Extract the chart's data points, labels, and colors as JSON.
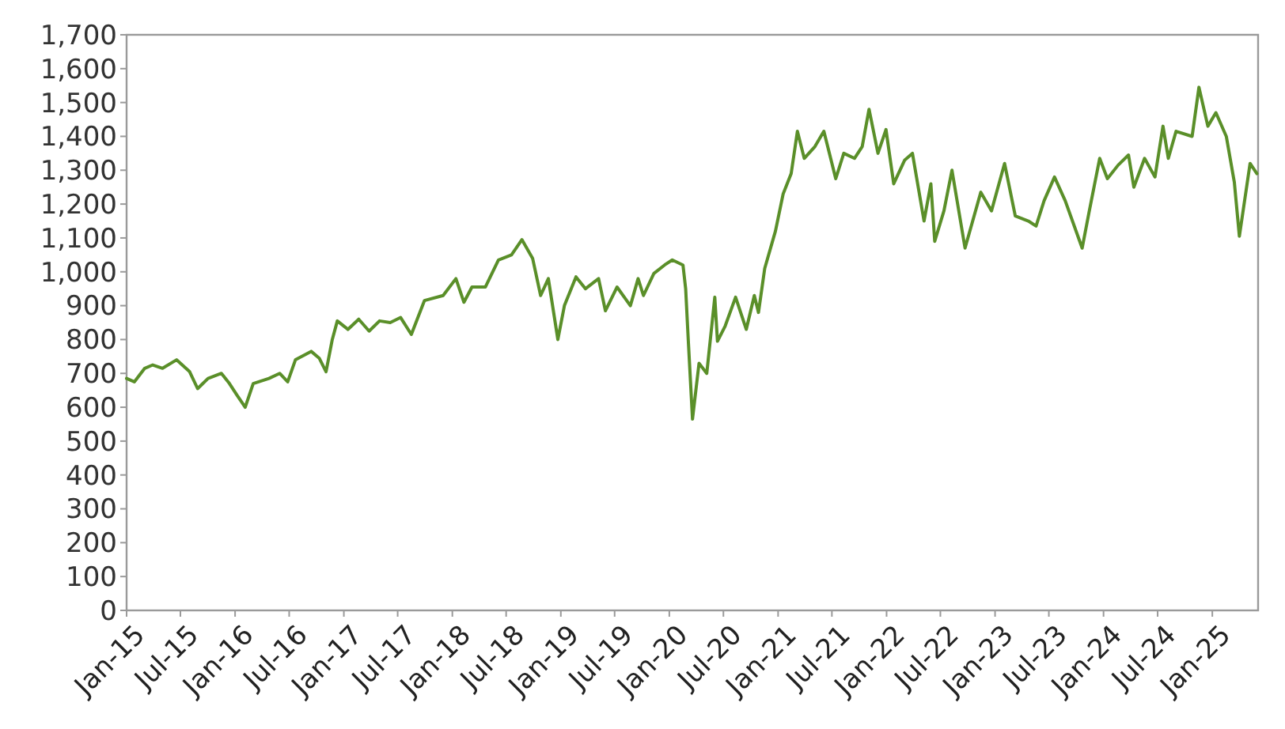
{
  "chart_data": {
    "type": "line",
    "xlim": [
      "2015-01-01",
      "2025-06-04"
    ],
    "ylim": [
      0,
      1700
    ],
    "yticks": [
      {
        "value": 0,
        "label": "0"
      },
      {
        "value": 100,
        "label": "100"
      },
      {
        "value": 200,
        "label": "200"
      },
      {
        "value": 300,
        "label": "300"
      },
      {
        "value": 400,
        "label": "400"
      },
      {
        "value": 500,
        "label": "500"
      },
      {
        "value": 600,
        "label": "600"
      },
      {
        "value": 700,
        "label": "700"
      },
      {
        "value": 800,
        "label": "800"
      },
      {
        "value": 900,
        "label": "900"
      },
      {
        "value": 1000,
        "label": "1,000"
      },
      {
        "value": 1100,
        "label": "1,100"
      },
      {
        "value": 1200,
        "label": "1,200"
      },
      {
        "value": 1300,
        "label": "1,300"
      },
      {
        "value": 1400,
        "label": "1,400"
      },
      {
        "value": 1500,
        "label": "1,500"
      },
      {
        "value": 1600,
        "label": "1,600"
      },
      {
        "value": 1700,
        "label": "1,700"
      }
    ],
    "xticks": [
      {
        "value": "2015-01-01",
        "label": "Jan-15"
      },
      {
        "value": "2015-07-01",
        "label": "Jul-15"
      },
      {
        "value": "2016-01-01",
        "label": "Jan-16"
      },
      {
        "value": "2016-07-01",
        "label": "Jul-16"
      },
      {
        "value": "2017-01-01",
        "label": "Jan-17"
      },
      {
        "value": "2017-07-01",
        "label": "Jul-17"
      },
      {
        "value": "2018-01-01",
        "label": "Jan-18"
      },
      {
        "value": "2018-07-01",
        "label": "Jul-18"
      },
      {
        "value": "2019-01-01",
        "label": "Jan-19"
      },
      {
        "value": "2019-07-01",
        "label": "Jul-19"
      },
      {
        "value": "2020-01-01",
        "label": "Jan-20"
      },
      {
        "value": "2020-07-01",
        "label": "Jul-20"
      },
      {
        "value": "2021-01-01",
        "label": "Jan-21"
      },
      {
        "value": "2021-07-01",
        "label": "Jul-21"
      },
      {
        "value": "2022-01-01",
        "label": "Jan-22"
      },
      {
        "value": "2022-07-01",
        "label": "Jul-22"
      },
      {
        "value": "2023-01-01",
        "label": "Jan-23"
      },
      {
        "value": "2023-07-01",
        "label": "Jul-23"
      },
      {
        "value": "2024-01-01",
        "label": "Jan-24"
      },
      {
        "value": "2024-07-01",
        "label": "Jul-24"
      },
      {
        "value": "2025-01-01",
        "label": "Jan-25"
      }
    ],
    "x": [
      "2015-01-01",
      "2015-01-27",
      "2015-03-03",
      "2015-03-30",
      "2015-05-02",
      "2015-06-18",
      "2015-08-01",
      "2015-08-28",
      "2015-10-02",
      "2015-11-16",
      "2015-12-13",
      "2016-01-08",
      "2016-02-04",
      "2016-03-02",
      "2016-04-24",
      "2016-05-30",
      "2016-06-26",
      "2016-07-22",
      "2016-09-13",
      "2016-10-10",
      "2016-11-02",
      "2016-11-23",
      "2016-12-10",
      "2017-01-15",
      "2017-02-20",
      "2017-03-27",
      "2017-05-01",
      "2017-06-06",
      "2017-07-11",
      "2017-08-16",
      "2017-09-29",
      "2017-12-01",
      "2018-01-13",
      "2018-02-09",
      "2018-03-08",
      "2018-04-22",
      "2018-06-05",
      "2018-07-19",
      "2018-08-23",
      "2018-09-28",
      "2018-10-25",
      "2018-11-20",
      "2018-12-22",
      "2019-01-13",
      "2019-02-21",
      "2019-03-25",
      "2019-05-08",
      "2019-05-31",
      "2019-07-09",
      "2019-08-23",
      "2019-09-18",
      "2019-10-06",
      "2019-11-10",
      "2019-12-16",
      "2020-01-11",
      "2020-02-16",
      "2020-02-25",
      "2020-03-05",
      "2020-03-19",
      "2020-04-10",
      "2020-05-06",
      "2020-06-02",
      "2020-06-11",
      "2020-07-07",
      "2020-08-11",
      "2020-09-16",
      "2020-10-13",
      "2020-10-27",
      "2020-11-17",
      "2020-12-23",
      "2021-01-18",
      "2021-02-14",
      "2021-03-07",
      "2021-03-30",
      "2021-05-05",
      "2021-06-04",
      "2021-07-14",
      "2021-08-10",
      "2021-09-15",
      "2021-10-11",
      "2021-11-03",
      "2021-12-03",
      "2021-12-30",
      "2022-01-25",
      "2022-03-03",
      "2022-03-29",
      "2022-05-07",
      "2022-05-30",
      "2022-06-12",
      "2022-07-13",
      "2022-08-09",
      "2022-09-22",
      "2022-11-14",
      "2022-12-20",
      "2023-02-02",
      "2023-03-10",
      "2023-04-23",
      "2023-05-19",
      "2023-06-15",
      "2023-07-20",
      "2023-08-25",
      "2023-10-21",
      "2023-11-13",
      "2023-12-19",
      "2024-01-14",
      "2024-02-19",
      "2024-03-25",
      "2024-04-12",
      "2024-05-18",
      "2024-06-22",
      "2024-07-19",
      "2024-08-06",
      "2024-09-01",
      "2024-10-25",
      "2024-11-17",
      "2024-12-17",
      "2025-01-13",
      "2025-02-17",
      "2025-03-16",
      "2025-04-02",
      "2025-05-08",
      "2025-05-31"
    ],
    "series": [
      {
        "color": "#5a8f29",
        "values": [
          685,
          675,
          715,
          725,
          715,
          740,
          705,
          655,
          685,
          700,
          670,
          635,
          600,
          670,
          685,
          700,
          675,
          740,
          765,
          745,
          705,
          800,
          855,
          830,
          860,
          825,
          855,
          850,
          865,
          815,
          915,
          930,
          980,
          910,
          955,
          955,
          1035,
          1050,
          1095,
          1040,
          930,
          980,
          800,
          900,
          985,
          950,
          980,
          885,
          955,
          900,
          980,
          930,
          995,
          1020,
          1035,
          1020,
          950,
          795,
          565,
          730,
          700,
          925,
          795,
          840,
          925,
          830,
          930,
          880,
          1010,
          1120,
          1230,
          1290,
          1415,
          1335,
          1370,
          1415,
          1275,
          1350,
          1335,
          1370,
          1480,
          1350,
          1420,
          1260,
          1330,
          1350,
          1150,
          1260,
          1090,
          1180,
          1300,
          1070,
          1235,
          1180,
          1320,
          1165,
          1150,
          1135,
          1210,
          1280,
          1210,
          1070,
          1175,
          1335,
          1275,
          1315,
          1345,
          1250,
          1335,
          1280,
          1430,
          1335,
          1415,
          1400,
          1545,
          1430,
          1470,
          1400,
          1265,
          1105,
          1320,
          1290
        ]
      }
    ],
    "marker": "none",
    "line_style": "solid",
    "grid": false
  }
}
